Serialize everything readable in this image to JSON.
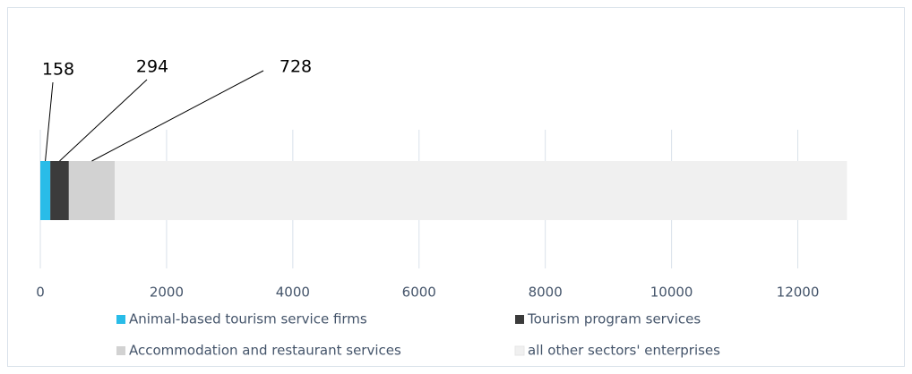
{
  "chart_data": {
    "type": "stacked_bar_horizontal",
    "series": [
      {
        "name": "Animal-based tourism service firms",
        "color": "#29bce8",
        "values": [
          158
        ]
      },
      {
        "name": "Tourism program services",
        "color": "#3b3b3b",
        "values": [
          294
        ]
      },
      {
        "name": "Accommodation and restaurant services",
        "color": "#d2d2d2",
        "values": [
          728
        ]
      },
      {
        "name": "all other sectors' enterprises",
        "color": "#f0f0f0",
        "values": [
          11600
        ]
      }
    ],
    "xlim": [
      0,
      13000
    ],
    "xticks": [
      0,
      2000,
      4000,
      6000,
      8000,
      10000,
      12000
    ],
    "grid": true
  }
}
